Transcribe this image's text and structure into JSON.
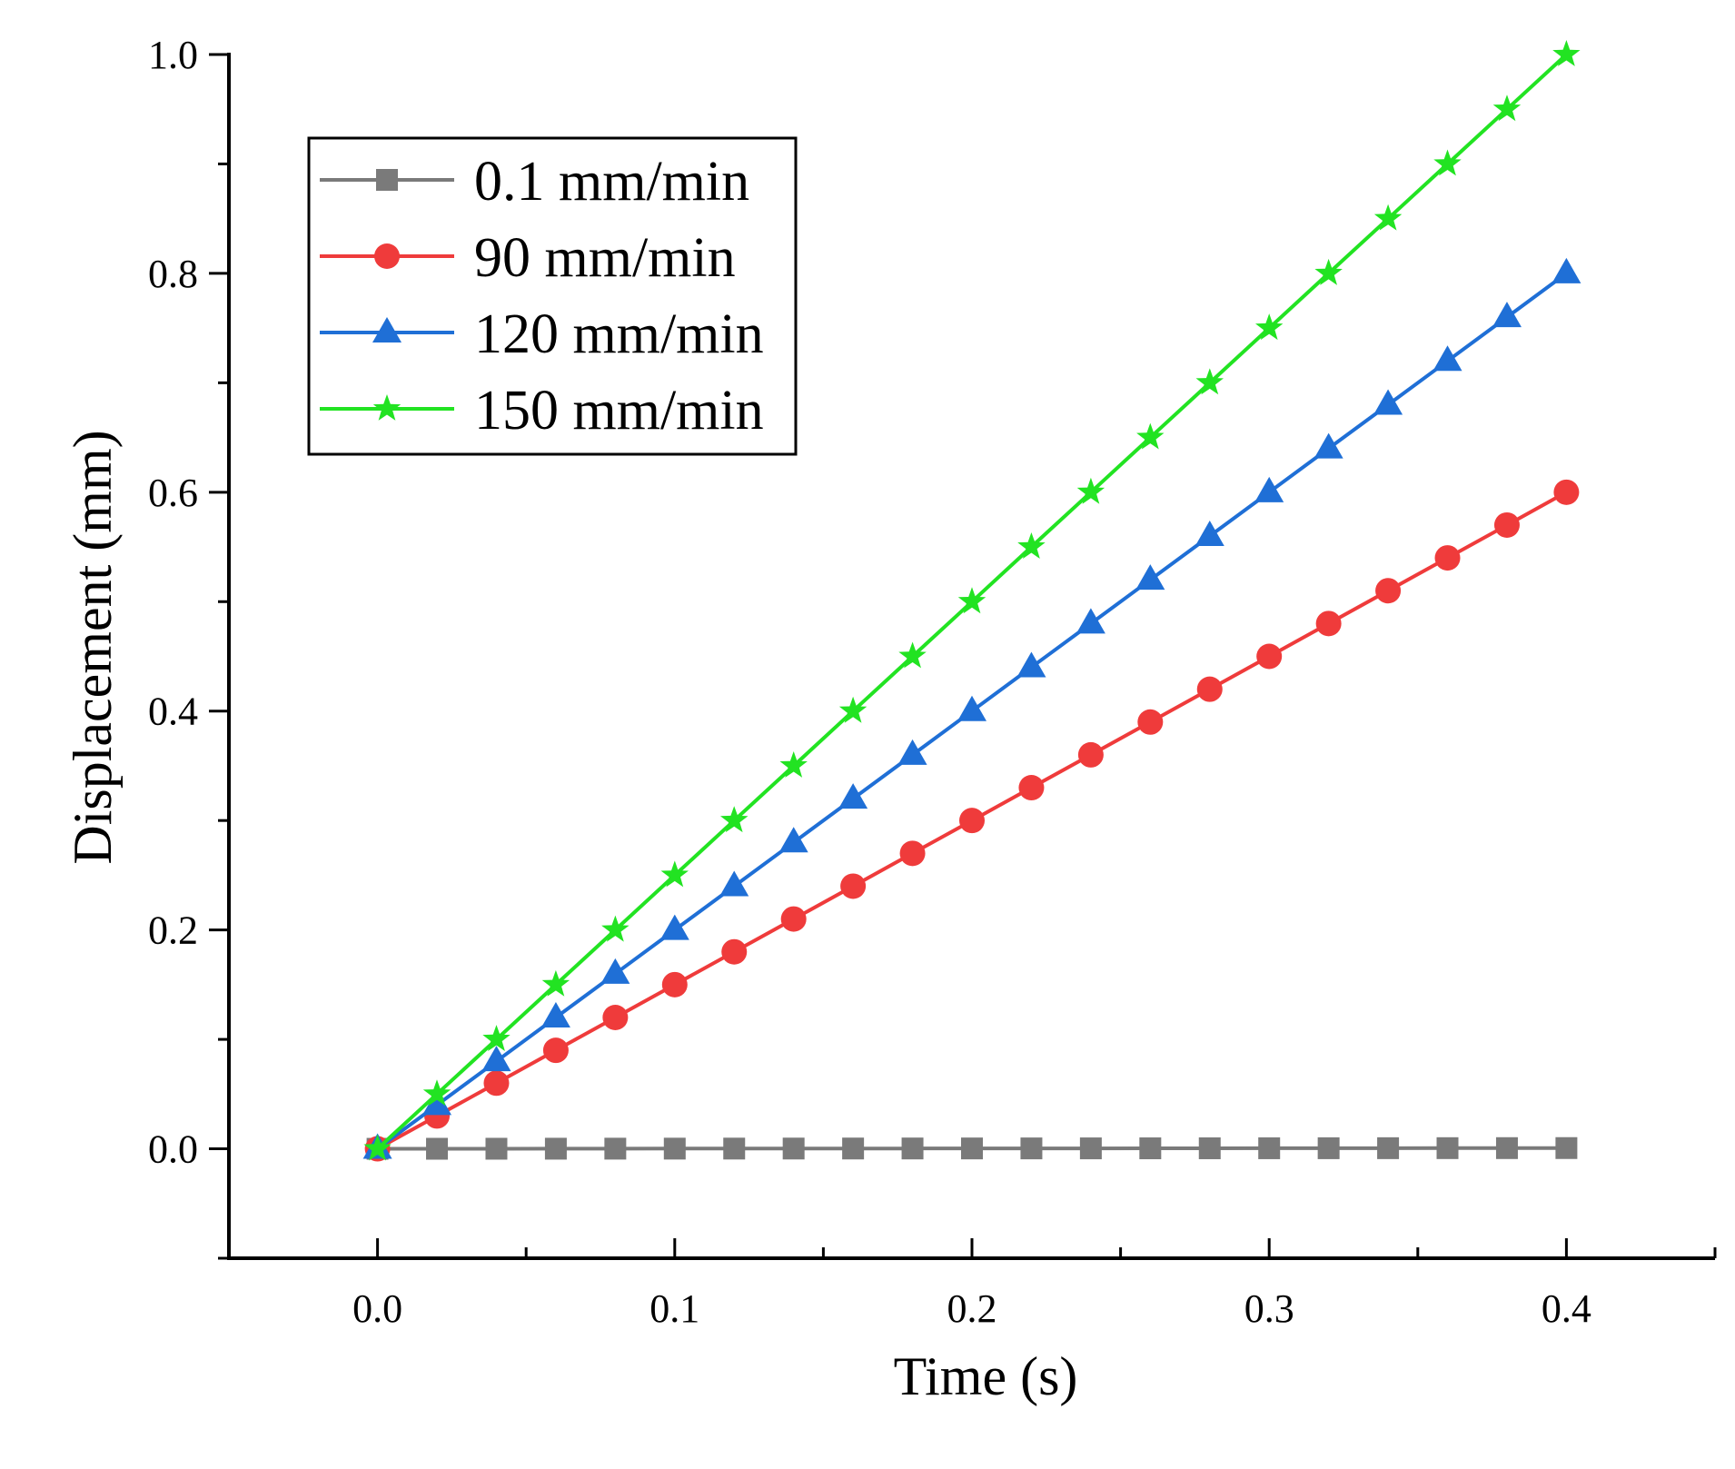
{
  "chart_data": {
    "type": "line",
    "title": "",
    "xlabel": "Time (s)",
    "ylabel": "Displacement (mm)",
    "xlim": [
      -0.05,
      0.45
    ],
    "ylim": [
      -0.1,
      1.0
    ],
    "x_ticks": [
      0.0,
      0.1,
      0.2,
      0.3,
      0.4
    ],
    "x_tick_labels": [
      "0.0",
      "0.1",
      "0.2",
      "0.3",
      "0.4"
    ],
    "y_ticks": [
      0.0,
      0.2,
      0.4,
      0.6,
      0.8,
      1.0
    ],
    "y_tick_labels": [
      "0.0",
      "0.2",
      "0.4",
      "0.6",
      "0.8",
      "1.0"
    ],
    "grid": false,
    "legend_position": "top-left",
    "x": [
      0.0,
      0.02,
      0.04,
      0.06,
      0.08,
      0.1,
      0.12,
      0.14,
      0.16,
      0.18,
      0.2,
      0.22,
      0.24,
      0.26,
      0.28,
      0.3,
      0.32,
      0.34,
      0.36,
      0.38,
      0.4
    ],
    "series": [
      {
        "name": "0.1 mm/min",
        "color": "#7a7a7a",
        "marker": "square",
        "values": [
          0,
          3.33e-05,
          6.67e-05,
          0.0001,
          0.000133,
          0.000167,
          0.0002,
          0.000233,
          0.000267,
          0.0003,
          0.000333,
          0.000367,
          0.0004,
          0.000433,
          0.000467,
          0.0005,
          0.000533,
          0.000567,
          0.0006,
          0.000633,
          0.000667
        ]
      },
      {
        "name": "90 mm/min",
        "color": "#ef3b3b",
        "marker": "circle",
        "values": [
          0,
          0.03,
          0.06,
          0.09,
          0.12,
          0.15,
          0.18,
          0.21,
          0.24,
          0.27,
          0.3,
          0.33,
          0.36,
          0.39,
          0.42,
          0.45,
          0.48,
          0.51,
          0.54,
          0.57,
          0.6
        ]
      },
      {
        "name": "120 mm/min",
        "color": "#1f6fd6",
        "marker": "triangle",
        "values": [
          0,
          0.04,
          0.08,
          0.12,
          0.16,
          0.2,
          0.24,
          0.28,
          0.32,
          0.36,
          0.4,
          0.44,
          0.48,
          0.52,
          0.56,
          0.6,
          0.64,
          0.68,
          0.72,
          0.76,
          0.8
        ]
      },
      {
        "name": "150 mm/min",
        "color": "#22e322",
        "marker": "star",
        "values": [
          0,
          0.05,
          0.1,
          0.15,
          0.2,
          0.25,
          0.3,
          0.35,
          0.4,
          0.45,
          0.5,
          0.55,
          0.6,
          0.65,
          0.7,
          0.75,
          0.8,
          0.85,
          0.9,
          0.95,
          1.0
        ]
      }
    ]
  }
}
